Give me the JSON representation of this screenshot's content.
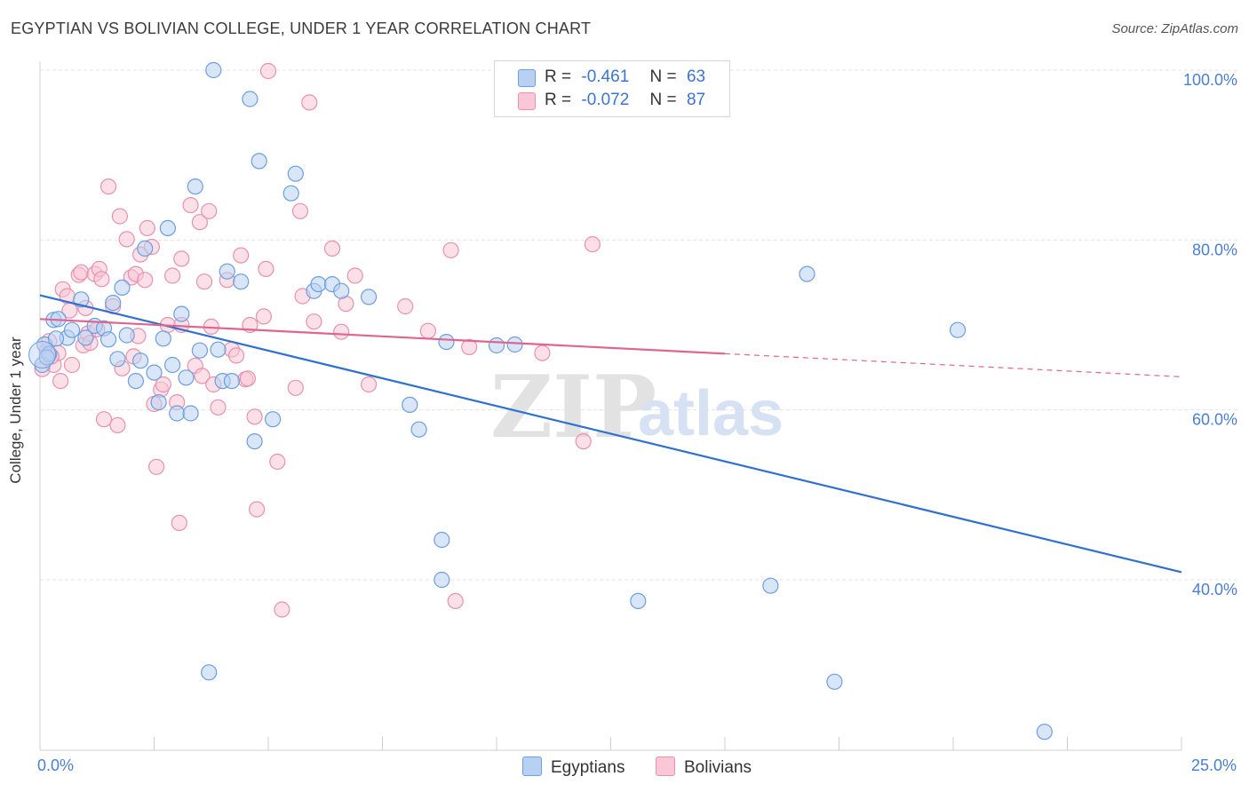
{
  "header": {
    "title": "EGYPTIAN VS BOLIVIAN COLLEGE, UNDER 1 YEAR CORRELATION CHART",
    "source": "Source: ZipAtlas.com"
  },
  "colors": {
    "egyptians_fill": "#b8d1f3",
    "egyptians_stroke": "#6c9ee0",
    "egyptians_line": "#3070d0",
    "bolivians_fill": "#f9c7d6",
    "bolivians_stroke": "#e891ae",
    "bolivians_line": "#e0648f",
    "axis_text": "#4a7fcf"
  },
  "legend": {
    "r_label": "R =",
    "n_label": "N =",
    "rows": [
      {
        "r": "-0.461",
        "n": "63"
      },
      {
        "r": "-0.072",
        "n": "87"
      }
    ]
  },
  "watermark": {
    "zip": "ZIP",
    "atlas": "atlas"
  },
  "chart_data": {
    "type": "scatter",
    "title": "EGYPTIAN VS BOLIVIAN COLLEGE, UNDER 1 YEAR CORRELATION CHART",
    "xlabel": "",
    "ylabel": "College, Under 1 year",
    "xlim": [
      0,
      25
    ],
    "ylim": [
      20,
      102
    ],
    "x_tick_labels": [
      "0.0%",
      "25.0%"
    ],
    "y_ticks": [
      40,
      60,
      80,
      100
    ],
    "y_tick_labels": [
      "40.0%",
      "60.0%",
      "80.0%",
      "100.0%"
    ],
    "grid": true,
    "legend_position": "top-center",
    "series": [
      {
        "name": "Egyptians",
        "r": -0.461,
        "n": 63,
        "trend": {
          "x": [
            0,
            25
          ],
          "y": [
            73.5,
            40.9
          ],
          "dashed_from": null
        },
        "points": [
          [
            0.05,
            65.3
          ],
          [
            0.1,
            67.7
          ],
          [
            0.2,
            66.6
          ],
          [
            0.3,
            70.6
          ],
          [
            0.4,
            70.7
          ],
          [
            0.6,
            68.5
          ],
          [
            0.7,
            69.4
          ],
          [
            0.9,
            73.0
          ],
          [
            1.0,
            68.5
          ],
          [
            1.2,
            69.9
          ],
          [
            1.4,
            69.6
          ],
          [
            1.5,
            68.3
          ],
          [
            1.6,
            72.6
          ],
          [
            1.7,
            66.0
          ],
          [
            1.8,
            74.4
          ],
          [
            1.9,
            68.8
          ],
          [
            2.1,
            63.4
          ],
          [
            2.2,
            65.8
          ],
          [
            2.3,
            79.0
          ],
          [
            2.5,
            64.4
          ],
          [
            2.6,
            60.9
          ],
          [
            2.7,
            68.4
          ],
          [
            2.8,
            81.4
          ],
          [
            2.9,
            65.3
          ],
          [
            3.0,
            59.6
          ],
          [
            3.1,
            71.3
          ],
          [
            3.2,
            63.8
          ],
          [
            3.3,
            59.6
          ],
          [
            3.4,
            86.3
          ],
          [
            3.5,
            67.0
          ],
          [
            3.8,
            100.0
          ],
          [
            3.9,
            67.1
          ],
          [
            4.0,
            63.4
          ],
          [
            4.1,
            76.3
          ],
          [
            4.2,
            63.4
          ],
          [
            4.4,
            75.1
          ],
          [
            4.6,
            96.6
          ],
          [
            4.7,
            56.3
          ],
          [
            4.8,
            89.3
          ],
          [
            5.1,
            58.9
          ],
          [
            5.5,
            85.5
          ],
          [
            5.6,
            87.8
          ],
          [
            6.0,
            74.0
          ],
          [
            6.1,
            74.8
          ],
          [
            6.4,
            74.8
          ],
          [
            6.6,
            74.0
          ],
          [
            7.2,
            73.3
          ],
          [
            8.1,
            60.6
          ],
          [
            8.3,
            57.7
          ],
          [
            8.8,
            44.7
          ],
          [
            8.8,
            40.0
          ],
          [
            8.9,
            68.0
          ],
          [
            10.0,
            67.6
          ],
          [
            10.4,
            67.7
          ],
          [
            13.1,
            37.5
          ],
          [
            3.7,
            29.1
          ],
          [
            16.0,
            39.3
          ],
          [
            16.8,
            76.0
          ],
          [
            17.4,
            28.0
          ],
          [
            20.1,
            69.4
          ],
          [
            22.0,
            22.1
          ],
          [
            0.15,
            66.2
          ],
          [
            0.35,
            68.4
          ]
        ]
      },
      {
        "name": "Bolivians",
        "r": -0.072,
        "n": 87,
        "trend": {
          "x": [
            0,
            25
          ],
          "y": [
            70.7,
            63.9
          ],
          "dashed_from": 15
        },
        "points": [
          [
            0.05,
            64.8
          ],
          [
            0.15,
            66.9
          ],
          [
            0.2,
            68.1
          ],
          [
            0.3,
            65.3
          ],
          [
            0.4,
            66.7
          ],
          [
            0.45,
            63.4
          ],
          [
            0.5,
            74.2
          ],
          [
            0.6,
            73.4
          ],
          [
            0.65,
            71.7
          ],
          [
            0.7,
            65.3
          ],
          [
            0.85,
            75.9
          ],
          [
            0.9,
            76.2
          ],
          [
            0.95,
            67.6
          ],
          [
            1.0,
            72.0
          ],
          [
            1.05,
            69.0
          ],
          [
            1.1,
            67.9
          ],
          [
            1.2,
            76.0
          ],
          [
            1.3,
            76.6
          ],
          [
            1.35,
            75.4
          ],
          [
            1.4,
            58.9
          ],
          [
            1.5,
            86.3
          ],
          [
            1.6,
            72.2
          ],
          [
            1.7,
            58.2
          ],
          [
            1.75,
            82.8
          ],
          [
            1.8,
            64.9
          ],
          [
            1.9,
            80.1
          ],
          [
            2.0,
            75.6
          ],
          [
            2.1,
            76.0
          ],
          [
            2.15,
            68.7
          ],
          [
            2.2,
            78.3
          ],
          [
            2.3,
            75.3
          ],
          [
            2.35,
            81.4
          ],
          [
            2.45,
            79.2
          ],
          [
            2.5,
            60.7
          ],
          [
            2.55,
            53.3
          ],
          [
            2.65,
            62.4
          ],
          [
            2.7,
            63.0
          ],
          [
            2.8,
            70.0
          ],
          [
            2.9,
            75.8
          ],
          [
            3.0,
            60.9
          ],
          [
            3.05,
            46.7
          ],
          [
            3.1,
            77.8
          ],
          [
            3.3,
            84.1
          ],
          [
            3.4,
            65.2
          ],
          [
            3.5,
            82.1
          ],
          [
            3.55,
            64.0
          ],
          [
            3.6,
            75.1
          ],
          [
            3.7,
            83.4
          ],
          [
            3.75,
            69.8
          ],
          [
            3.8,
            63.0
          ],
          [
            3.9,
            60.3
          ],
          [
            4.1,
            75.3
          ],
          [
            4.2,
            67.1
          ],
          [
            4.3,
            66.4
          ],
          [
            4.4,
            78.2
          ],
          [
            4.5,
            63.6
          ],
          [
            4.55,
            63.7
          ],
          [
            4.6,
            70.0
          ],
          [
            4.7,
            59.2
          ],
          [
            4.75,
            48.3
          ],
          [
            4.9,
            71.0
          ],
          [
            4.95,
            76.6
          ],
          [
            5.0,
            99.9
          ],
          [
            5.2,
            53.9
          ],
          [
            5.3,
            36.5
          ],
          [
            5.6,
            62.6
          ],
          [
            5.7,
            83.4
          ],
          [
            5.75,
            73.4
          ],
          [
            5.9,
            96.2
          ],
          [
            6.0,
            70.4
          ],
          [
            6.4,
            79.0
          ],
          [
            6.6,
            69.2
          ],
          [
            6.7,
            72.5
          ],
          [
            6.9,
            75.8
          ],
          [
            7.2,
            63.0
          ],
          [
            8.0,
            72.2
          ],
          [
            8.5,
            69.3
          ],
          [
            9.0,
            78.8
          ],
          [
            9.1,
            37.5
          ],
          [
            9.4,
            67.4
          ],
          [
            11.0,
            66.7
          ],
          [
            11.9,
            56.3
          ],
          [
            12.1,
            79.5
          ],
          [
            3.1,
            70.0
          ],
          [
            2.05,
            66.3
          ],
          [
            1.25,
            69.5
          ],
          [
            0.25,
            66.3
          ]
        ]
      }
    ]
  }
}
